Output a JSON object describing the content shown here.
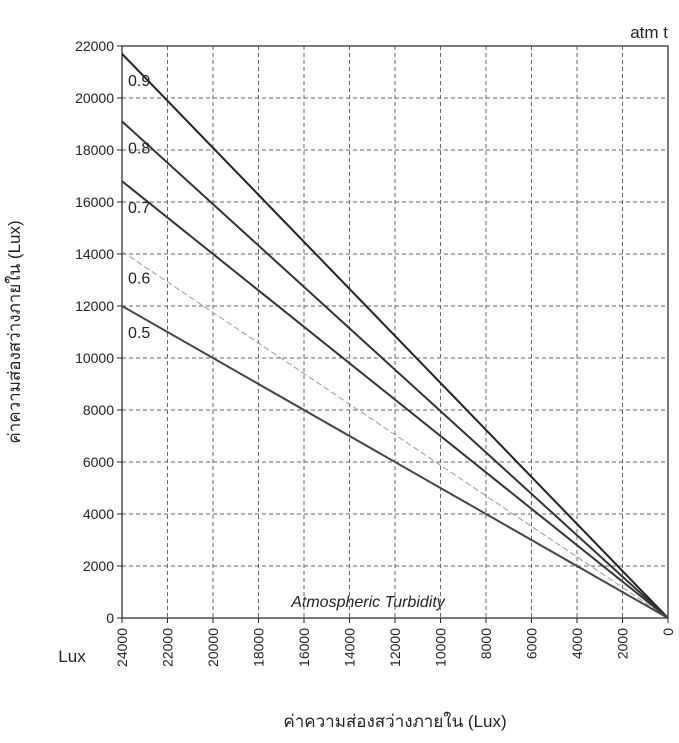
{
  "chart_data": {
    "type": "line",
    "title": "atm t",
    "xlabel": "ค่าความส่องสว่างภายใน (Lux)",
    "ylabel": "ค่าความส่องสว่างภายใน (Lux)",
    "x_unit_label": "Lux",
    "annotation": "Atmospheric Turbidity",
    "x": [
      24000,
      0
    ],
    "series": [
      {
        "name": "0.9",
        "color": "#222222",
        "values": [
          21700,
          0
        ]
      },
      {
        "name": "0.8",
        "color": "#333333",
        "values": [
          19100,
          0
        ]
      },
      {
        "name": "0.7",
        "color": "#333333",
        "values": [
          16800,
          0
        ]
      },
      {
        "name": "0.6",
        "color": "#999999",
        "values": [
          14100,
          0
        ]
      },
      {
        "name": "0.5",
        "color": "#444444",
        "values": [
          12000,
          0
        ]
      }
    ],
    "xlim": [
      24000,
      0
    ],
    "xticks": [
      24000,
      22000,
      20000,
      18000,
      16000,
      14000,
      12000,
      10000,
      8000,
      6000,
      4000,
      2000,
      0
    ],
    "ylim": [
      0,
      22000
    ],
    "yticks": [
      0,
      2000,
      4000,
      6000,
      8000,
      10000,
      12000,
      14000,
      16000,
      18000,
      20000,
      22000
    ],
    "grid": true
  }
}
